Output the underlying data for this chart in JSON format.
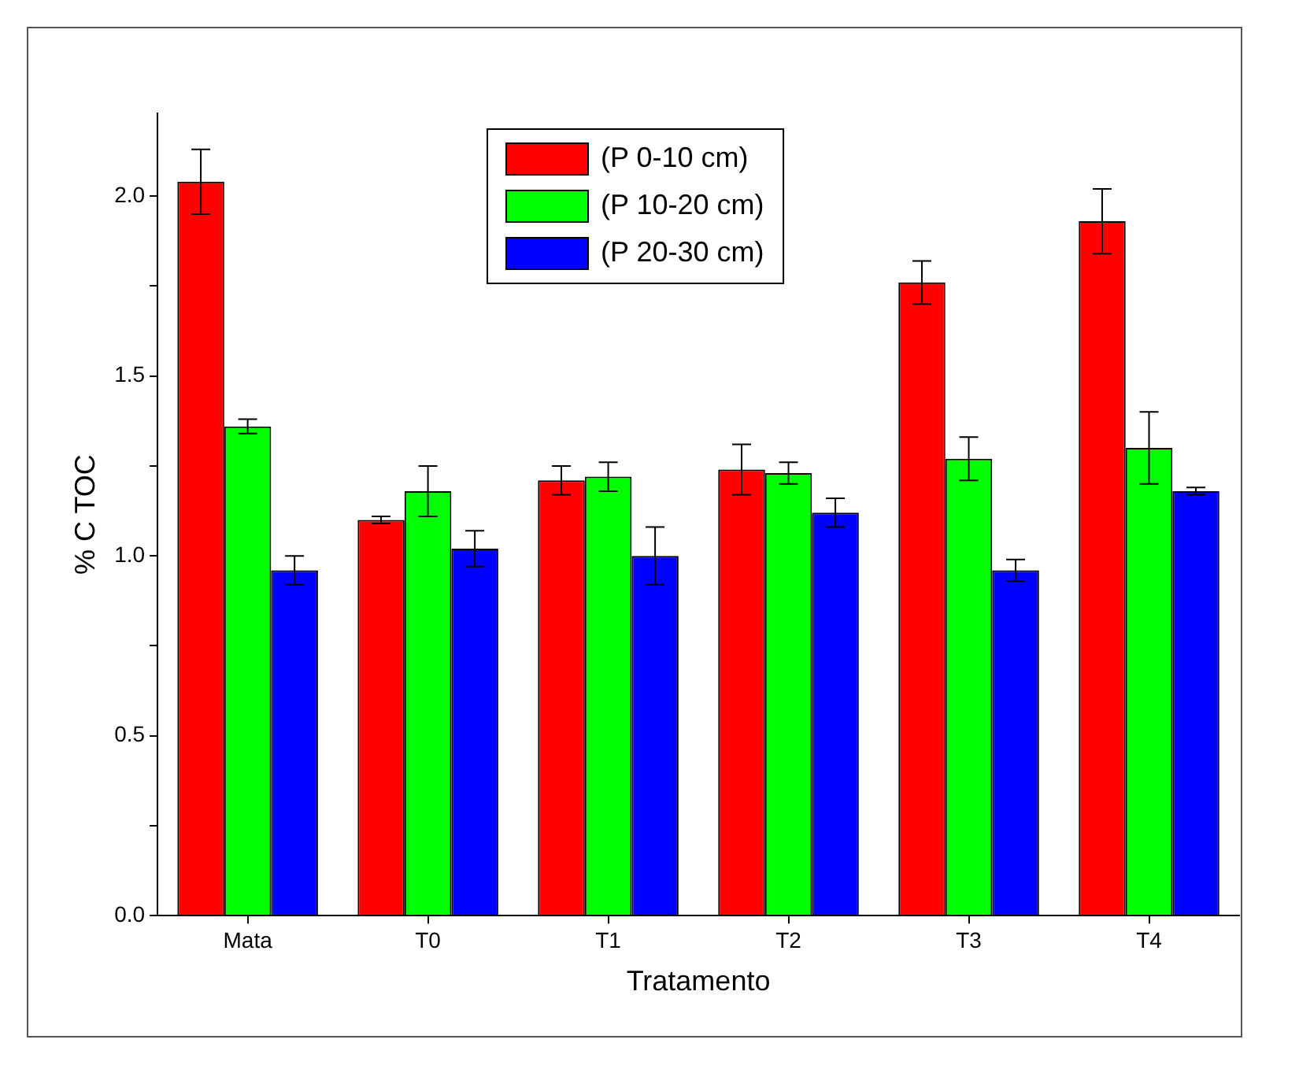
{
  "chart_data": {
    "type": "bar",
    "xlabel": "Tratamento",
    "ylabel": "% C TOC",
    "categories": [
      "Mata",
      "T0",
      "T1",
      "T2",
      "T3",
      "T4"
    ],
    "series": [
      {
        "name": "(P 0-10 cm)",
        "color": "#ff0000",
        "values": [
          2.04,
          1.1,
          1.21,
          1.24,
          1.76,
          1.93
        ],
        "errors": [
          0.09,
          0.01,
          0.04,
          0.07,
          0.06,
          0.09
        ]
      },
      {
        "name": "(P 10-20 cm)",
        "color": "#00ff00",
        "values": [
          1.36,
          1.18,
          1.22,
          1.23,
          1.27,
          1.3
        ],
        "errors": [
          0.02,
          0.07,
          0.04,
          0.03,
          0.06,
          0.1
        ]
      },
      {
        "name": "(P 20-30 cm)",
        "color": "#0000ff",
        "values": [
          0.96,
          1.02,
          1.0,
          1.12,
          0.96,
          1.18
        ],
        "errors": [
          0.04,
          0.05,
          0.08,
          0.04,
          0.03,
          0.01
        ]
      }
    ],
    "ylim": [
      0,
      2.23
    ],
    "yticks": [
      {
        "value": 0,
        "label": "0.0"
      },
      {
        "value": 0.25,
        "label": null
      },
      {
        "value": 0.5,
        "label": "0.5"
      },
      {
        "value": 0.75,
        "label": null
      },
      {
        "value": 1,
        "label": "1.0"
      },
      {
        "value": 1.25,
        "label": null
      },
      {
        "value": 1.5,
        "label": "1.5"
      },
      {
        "value": 1.75,
        "label": null
      },
      {
        "value": 2,
        "label": "2.0"
      }
    ],
    "legend": "top",
    "grid": false
  }
}
